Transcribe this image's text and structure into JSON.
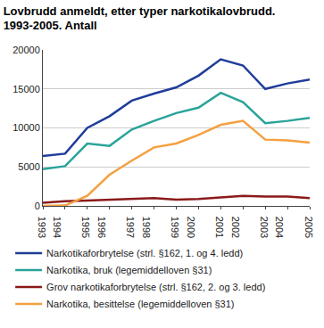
{
  "chart_data": {
    "type": "line",
    "title": "Lovbrudd anmeldt, etter typer narkotikalovbrudd.\n1993-2005. Antall",
    "x": [
      1993,
      1994,
      1995,
      1996,
      1997,
      1998,
      1999,
      2000,
      2001,
      2002,
      2003,
      2004,
      2005
    ],
    "xlim": [
      1993,
      2005
    ],
    "xticks": [
      1993,
      1994,
      1995,
      1996,
      1997,
      1998,
      1999,
      2000,
      2001,
      2002,
      2003,
      2004,
      2005
    ],
    "ylim": [
      0,
      20000
    ],
    "yticks": [
      0,
      5000,
      10000,
      15000,
      20000
    ],
    "grid": true,
    "legend": "bottom",
    "series": [
      {
        "name": "Narkotikaforbrytelse (strl. §162, 1. og 4. ledd)",
        "color": "#1f3d99",
        "values": [
          6400,
          6700,
          10000,
          11500,
          13500,
          14400,
          15200,
          16700,
          18800,
          18000,
          15000,
          15700,
          16200
        ]
      },
      {
        "name": "Narkotika, bruk (legemiddelloven §31)",
        "color": "#2aa39a",
        "values": [
          4700,
          5100,
          8000,
          7700,
          9800,
          10900,
          11900,
          12600,
          14500,
          13300,
          10600,
          10900,
          11300
        ]
      },
      {
        "name": "Grov narkotikaforbrytelse (strl. §162, 2. og 3. ledd)",
        "color": "#8b1a1a",
        "values": [
          400,
          600,
          700,
          800,
          900,
          1000,
          800,
          900,
          1100,
          1300,
          1200,
          1200,
          1000
        ]
      },
      {
        "name": "Narkotika, besittelse (legemiddelloven §31)",
        "color": "#f5a040",
        "values": [
          0,
          50,
          1300,
          4000,
          5800,
          7500,
          8000,
          9100,
          10400,
          10900,
          8500,
          8400,
          8100
        ]
      }
    ]
  }
}
